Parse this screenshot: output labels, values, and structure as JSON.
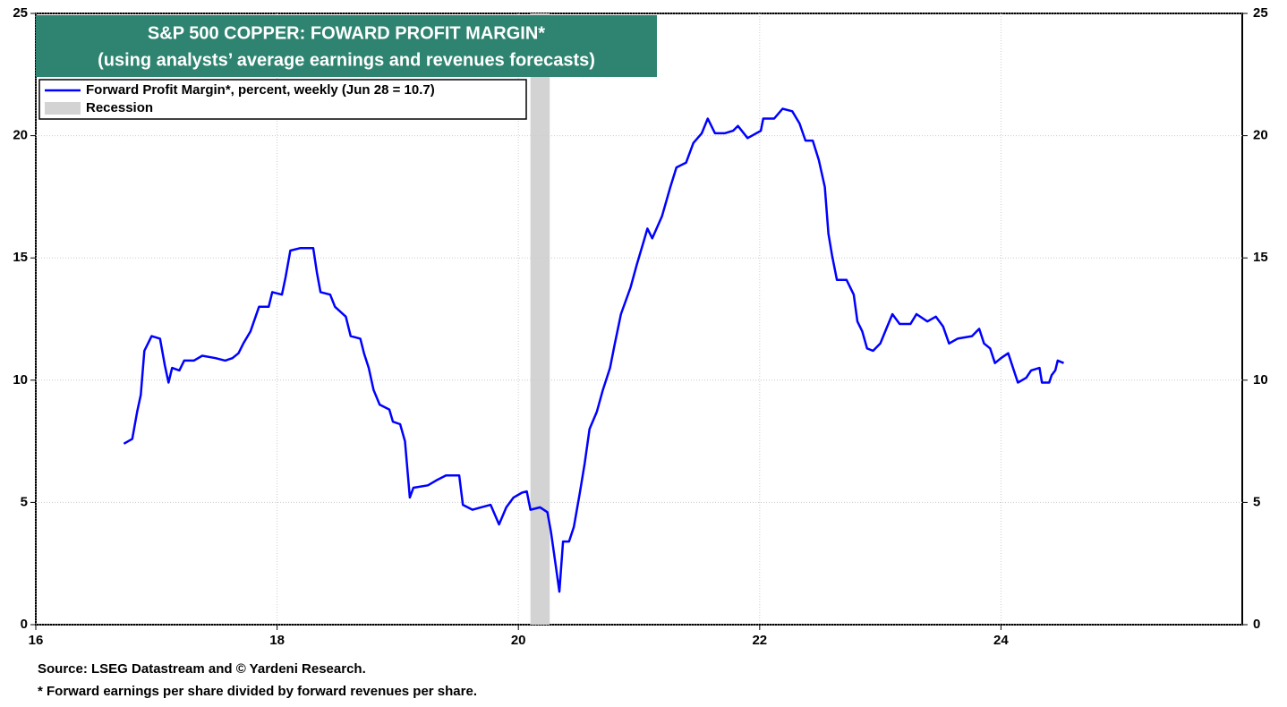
{
  "chart_data": {
    "type": "line",
    "title": "S&P 500 COPPER: FOWARD PROFIT MARGIN*",
    "subtitle": "(using analysts’ average earnings and revenues forecasts)",
    "x": [
      16.73,
      16.8,
      16.84,
      16.87,
      16.9,
      16.96,
      17.03,
      17.07,
      17.1,
      17.13,
      17.19,
      17.23,
      17.31,
      17.38,
      17.49,
      17.57,
      17.63,
      17.68,
      17.72,
      17.78,
      17.85,
      17.93,
      17.96,
      18.04,
      18.07,
      18.11,
      18.19,
      18.3,
      18.33,
      18.36,
      18.44,
      18.48,
      18.57,
      18.61,
      18.69,
      18.72,
      18.76,
      18.8,
      18.85,
      18.93,
      18.96,
      19.02,
      19.06,
      19.1,
      19.13,
      19.25,
      19.32,
      19.4,
      19.51,
      19.54,
      19.62,
      19.69,
      19.77,
      19.84,
      19.9,
      19.96,
      20.03,
      20.07,
      20.1,
      20.18,
      20.24,
      20.27,
      20.31,
      20.34,
      20.37,
      20.42,
      20.46,
      20.51,
      20.55,
      20.59,
      20.65,
      20.7,
      20.76,
      20.8,
      20.85,
      20.93,
      20.98,
      21.04,
      21.07,
      21.11,
      21.19,
      21.26,
      21.31,
      21.39,
      21.45,
      21.52,
      21.57,
      21.63,
      21.71,
      21.78,
      21.82,
      21.9,
      22.01,
      22.03,
      22.12,
      22.19,
      22.27,
      22.33,
      22.38,
      22.44,
      22.49,
      22.54,
      22.57,
      22.6,
      22.64,
      22.72,
      22.78,
      22.81,
      22.85,
      22.89,
      22.94,
      23.0,
      23.05,
      23.1,
      23.16,
      23.25,
      23.3,
      23.39,
      23.46,
      23.52,
      23.57,
      23.64,
      23.76,
      23.82,
      23.86,
      23.91,
      23.95,
      24.0,
      24.06,
      24.1,
      24.14,
      24.21,
      24.25,
      24.32,
      24.34,
      24.4,
      24.42,
      24.45,
      24.47,
      24.52
    ],
    "series": [
      {
        "name": "Forward Profit Margin*, percent, weekly (Jun 28 = 10.7)",
        "color": "#0000ff",
        "values": [
          7.4,
          7.6,
          8.7,
          9.4,
          11.2,
          11.8,
          11.7,
          10.6,
          9.9,
          10.5,
          10.4,
          10.8,
          10.8,
          11.0,
          10.9,
          10.8,
          10.9,
          11.1,
          11.5,
          12.0,
          13.0,
          13.0,
          13.6,
          13.5,
          14.2,
          15.3,
          15.4,
          15.4,
          14.4,
          13.6,
          13.5,
          13.0,
          12.6,
          11.8,
          11.7,
          11.1,
          10.5,
          9.6,
          9.0,
          8.8,
          8.3,
          8.2,
          7.5,
          5.2,
          5.6,
          5.7,
          5.9,
          6.1,
          6.1,
          4.9,
          4.7,
          4.8,
          4.9,
          4.1,
          4.8,
          5.2,
          5.4,
          5.45,
          4.7,
          4.8,
          4.6,
          3.8,
          2.4,
          1.35,
          3.4,
          3.4,
          4.0,
          5.4,
          6.6,
          8.0,
          8.7,
          9.6,
          10.5,
          11.5,
          12.7,
          13.8,
          14.7,
          15.7,
          16.2,
          15.8,
          16.7,
          17.9,
          18.7,
          18.9,
          19.7,
          20.1,
          20.7,
          20.1,
          20.1,
          20.2,
          20.4,
          19.9,
          20.2,
          20.7,
          20.7,
          21.1,
          21.0,
          20.5,
          19.8,
          19.8,
          19.0,
          17.9,
          16.0,
          15.1,
          14.1,
          14.1,
          13.5,
          12.4,
          12.0,
          11.3,
          11.2,
          11.5,
          12.1,
          12.7,
          12.3,
          12.3,
          12.7,
          12.4,
          12.6,
          12.2,
          11.5,
          11.7,
          11.8,
          12.1,
          11.5,
          11.3,
          10.7,
          10.9,
          11.1,
          10.5,
          9.9,
          10.1,
          10.4,
          10.5,
          9.9,
          9.9,
          10.2,
          10.4,
          10.8,
          10.7
        ]
      }
    ],
    "recession": {
      "name": "Recession",
      "start": 20.1,
      "end": 20.26,
      "color": "#d3d3d3"
    },
    "xlim": [
      16,
      26
    ],
    "xticks": [
      16,
      18,
      20,
      22,
      24
    ],
    "ylim": [
      0,
      25
    ],
    "yticks": [
      0,
      5,
      10,
      15,
      20,
      25
    ],
    "y2lim": [
      0,
      25
    ],
    "y2ticks": [
      0,
      5,
      10,
      15,
      20,
      25
    ],
    "grid": true,
    "legend": "upper left",
    "notes": [
      "Source: LSEG Datastream and © Yardeni Research.",
      "* Forward earnings per share divided by forward revenues per share."
    ]
  }
}
